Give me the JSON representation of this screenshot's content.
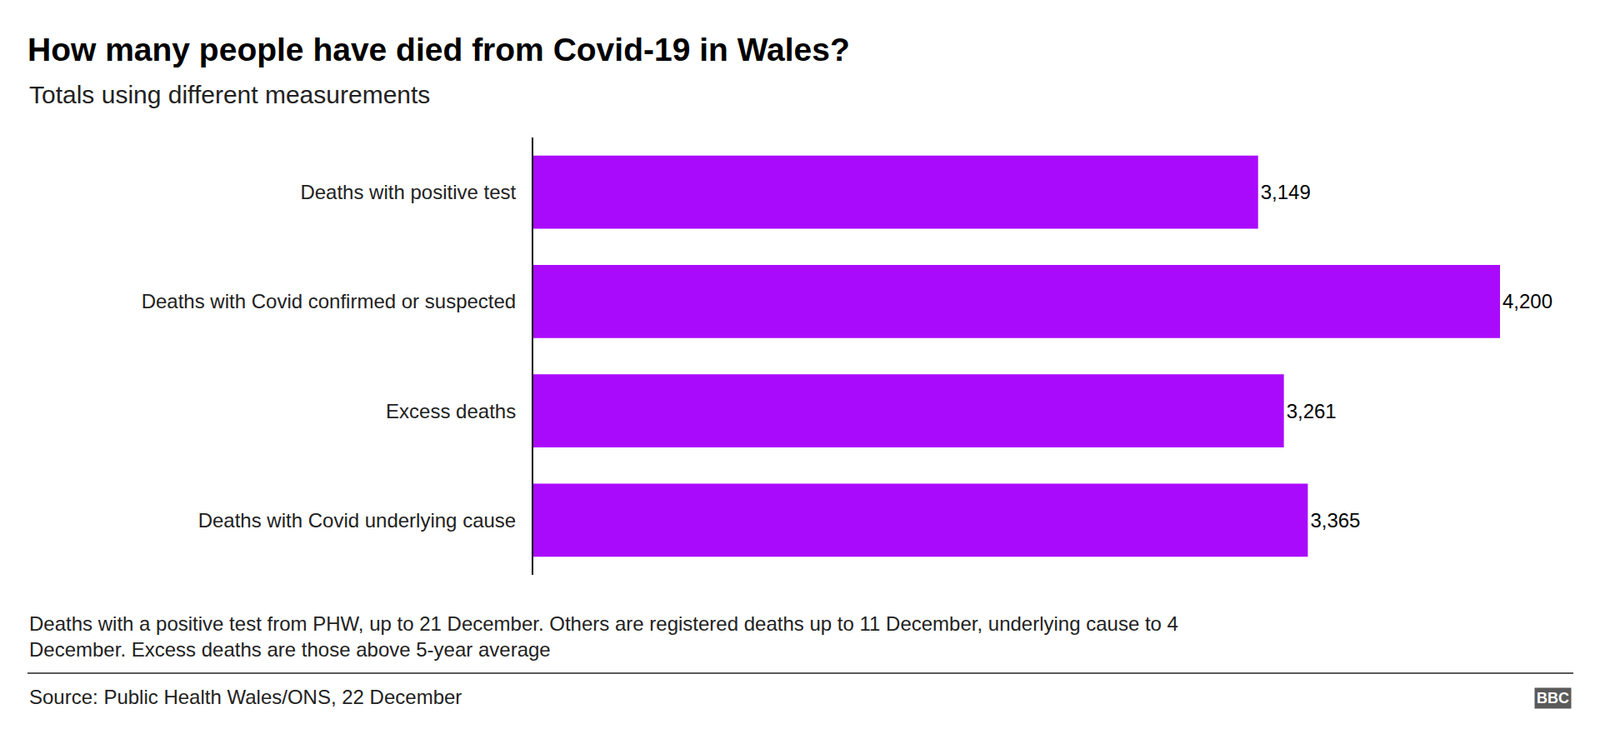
{
  "chart_data": {
    "type": "bar",
    "orientation": "horizontal",
    "title": "How many people have died from Covid-19 in Wales?",
    "subtitle": "Totals using different measurements",
    "categories": [
      "Deaths with positive test",
      "Deaths with Covid confirmed or suspected",
      "Excess deaths",
      "Deaths with Covid underlying cause"
    ],
    "values": [
      3149,
      4200,
      3261,
      3365
    ],
    "value_labels": [
      "3,149",
      "4,200",
      "3,261",
      "3,365"
    ],
    "data_labels": true,
    "color": "#aa0afc",
    "xlim": [
      0,
      4200
    ],
    "tick_labels": "y",
    "grid": false,
    "note": [
      "Deaths with a positive test from PHW, up to 21 December. Others are registered deaths up to 11 December, underlying cause to 4",
      "December. Excess deaths are those above 5-year average"
    ],
    "source": "Source: Public Health Wales/ONS, 22 December",
    "logo": "BBC"
  }
}
